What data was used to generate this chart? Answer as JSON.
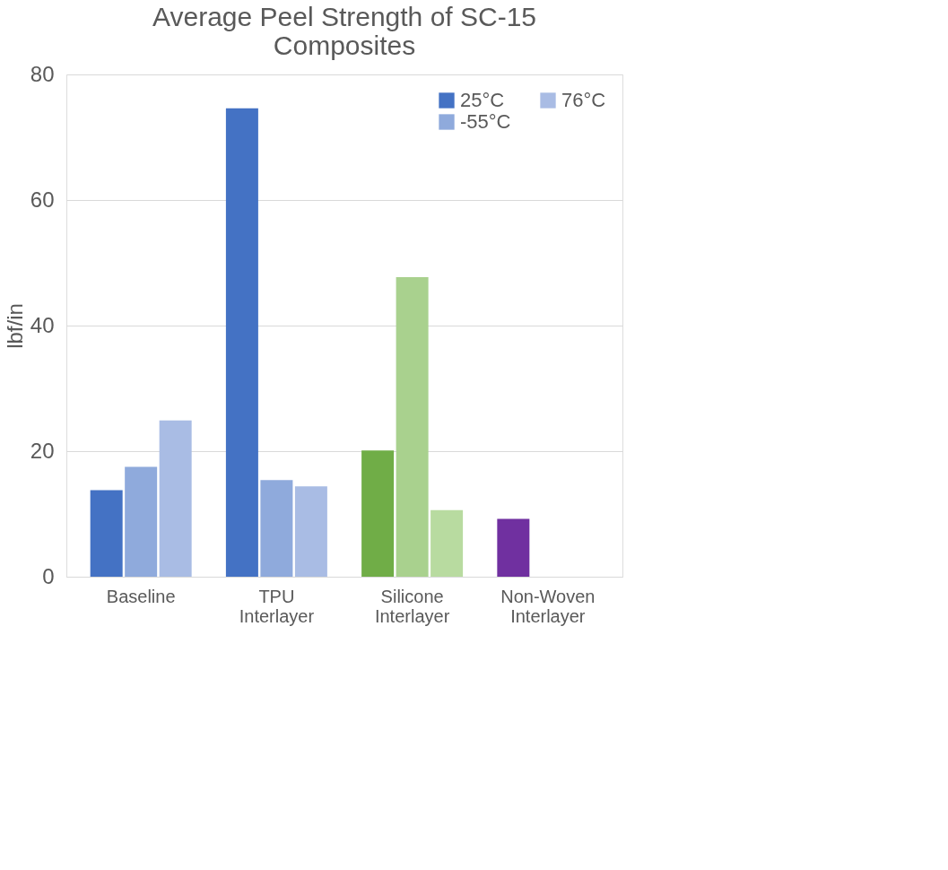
{
  "chart_data": {
    "type": "bar",
    "title": "Average Peel Strength of SC-15 Composites",
    "ylabel": "lbf/in",
    "categories": [
      "Baseline",
      "TPU Interlayer",
      "Silicone Interlayer",
      "Non-Woven Interlayer"
    ],
    "series": [
      {
        "name": "25°C",
        "color": "#4472c4",
        "colors": [
          "#4472c4",
          "#4472c4",
          "#70ad47",
          "#7030a0"
        ],
        "values": [
          13.8,
          74.6,
          20.1,
          9.2
        ]
      },
      {
        "name": "-55°C",
        "color": "#8faadc",
        "colors": [
          "#8faadc",
          "#8faadc",
          "#a9d18e",
          null
        ],
        "values": [
          17.5,
          15.4,
          47.7,
          null
        ]
      },
      {
        "name": "76°C",
        "color": "#a9bce4",
        "colors": [
          "#a9bce4",
          "#a9bce4",
          "#b8dba0",
          null
        ],
        "values": [
          24.9,
          14.4,
          10.6,
          null
        ]
      }
    ],
    "ylim": [
      0,
      80
    ],
    "yticks": [
      0,
      20,
      40,
      60,
      80
    ],
    "grid": "y",
    "legend": "top right"
  }
}
